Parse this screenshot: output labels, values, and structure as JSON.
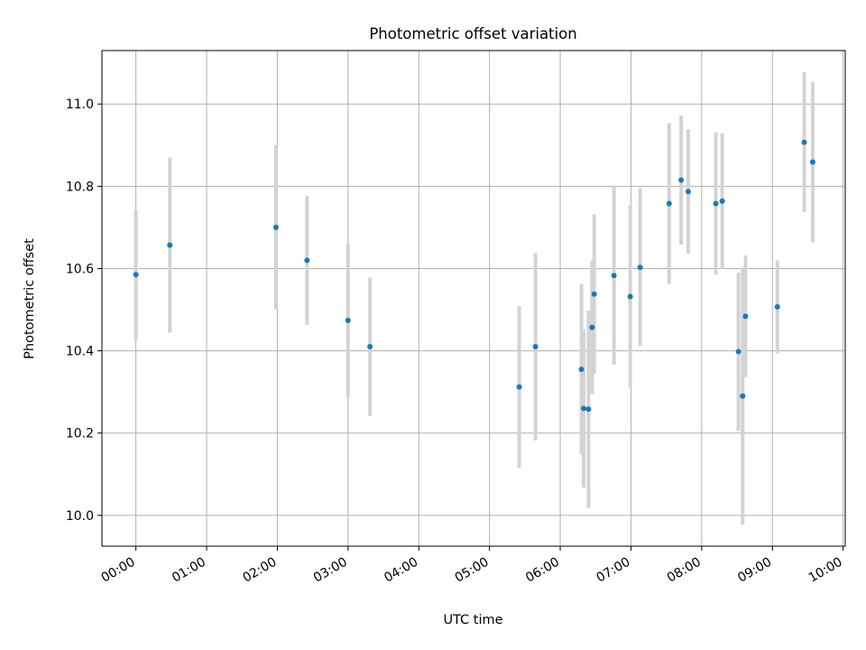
{
  "chart_data": {
    "type": "scatter",
    "title": "Photometric offset variation",
    "xlabel": "UTC time",
    "ylabel": "Photometric offset",
    "grid": true,
    "x_unit": "hours UTC",
    "xlim": [
      -0.48,
      10.03
    ],
    "ylim": [
      9.925,
      11.13
    ],
    "x_ticks": [
      0,
      1,
      2,
      3,
      4,
      5,
      6,
      7,
      8,
      9,
      10
    ],
    "x_tick_labels": [
      "00:00",
      "01:00",
      "02:00",
      "03:00",
      "04:00",
      "05:00",
      "06:00",
      "07:00",
      "08:00",
      "09:00",
      "10:00"
    ],
    "y_ticks": [
      10.0,
      10.2,
      10.4,
      10.6,
      10.8,
      11.0
    ],
    "y_tick_labels": [
      "10.0",
      "10.2",
      "10.4",
      "10.6",
      "10.8",
      "11.0"
    ],
    "colors": {
      "point": "#1f77b4",
      "errorbar": "#d3d3d3",
      "grid": "#b0b0b0"
    },
    "series": [
      {
        "points": [
          {
            "x": 0.0,
            "y": 10.585,
            "yerr": 0.157
          },
          {
            "x": 0.48,
            "y": 10.657,
            "yerr": 0.213
          },
          {
            "x": 1.98,
            "y": 10.7,
            "yerr": 0.2
          },
          {
            "x": 2.42,
            "y": 10.62,
            "yerr": 0.157
          },
          {
            "x": 3.0,
            "y": 10.474,
            "yerr": 0.187
          },
          {
            "x": 3.31,
            "y": 10.41,
            "yerr": 0.168
          },
          {
            "x": 5.42,
            "y": 10.312,
            "yerr": 0.197
          },
          {
            "x": 5.65,
            "y": 10.41,
            "yerr": 0.228
          },
          {
            "x": 6.3,
            "y": 10.355,
            "yerr": 0.207
          },
          {
            "x": 6.33,
            "y": 10.26,
            "yerr": 0.192
          },
          {
            "x": 6.4,
            "y": 10.258,
            "yerr": 0.24
          },
          {
            "x": 6.45,
            "y": 10.457,
            "yerr": 0.162
          },
          {
            "x": 6.48,
            "y": 10.538,
            "yerr": 0.194
          },
          {
            "x": 6.76,
            "y": 10.583,
            "yerr": 0.217
          },
          {
            "x": 6.99,
            "y": 10.532,
            "yerr": 0.222
          },
          {
            "x": 7.13,
            "y": 10.603,
            "yerr": 0.192
          },
          {
            "x": 7.54,
            "y": 10.758,
            "yerr": 0.195
          },
          {
            "x": 7.71,
            "y": 10.815,
            "yerr": 0.157
          },
          {
            "x": 7.81,
            "y": 10.787,
            "yerr": 0.151
          },
          {
            "x": 8.2,
            "y": 10.758,
            "yerr": 0.173
          },
          {
            "x": 8.29,
            "y": 10.764,
            "yerr": 0.165
          },
          {
            "x": 8.52,
            "y": 10.398,
            "yerr": 0.192
          },
          {
            "x": 8.58,
            "y": 10.29,
            "yerr": 0.313
          },
          {
            "x": 8.62,
            "y": 10.484,
            "yerr": 0.148
          },
          {
            "x": 9.07,
            "y": 10.507,
            "yerr": 0.113
          },
          {
            "x": 9.45,
            "y": 10.907,
            "yerr": 0.17
          },
          {
            "x": 9.57,
            "y": 10.859,
            "yerr": 0.195
          }
        ]
      }
    ]
  }
}
